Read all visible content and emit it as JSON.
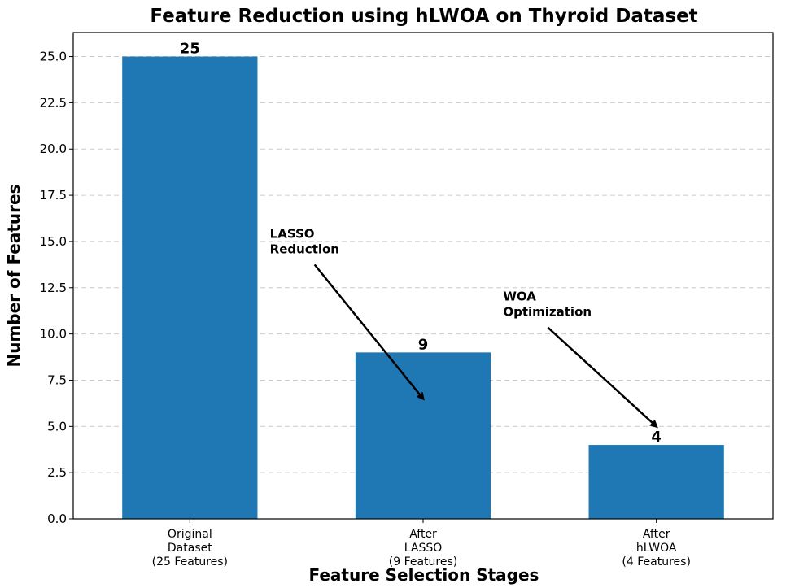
{
  "chart_data": {
    "type": "bar",
    "title": "Feature Reduction using hLWOA on Thyroid Dataset",
    "xlabel": "Feature Selection Stages",
    "ylabel": "Number of Features",
    "categories": [
      [
        "Original",
        "Dataset",
        "(25 Features)"
      ],
      [
        "After",
        "LASSO",
        "(9 Features)"
      ],
      [
        "After",
        "hLWOA",
        "(4 Features)"
      ]
    ],
    "values": [
      25,
      9,
      4
    ],
    "data_labels": [
      "25",
      "9",
      "4"
    ],
    "ylim": [
      0,
      26.3
    ],
    "yticks": [
      0,
      2.5,
      5,
      7.5,
      10,
      12.5,
      15,
      17.5,
      20,
      22.5,
      25
    ],
    "ytick_labels": [
      "0.0",
      "2.5",
      "5.0",
      "7.5",
      "10.0",
      "12.5",
      "15.0",
      "17.5",
      "20.0",
      "22.5",
      "25.0"
    ],
    "grid": "y-dashed",
    "bar_color": "#1f77b4",
    "annotations": [
      {
        "lines": [
          "LASSO",
          "Reduction"
        ],
        "text_category": 0.5,
        "text_y": 15.2,
        "target_category": 1,
        "target_y": 6.5
      },
      {
        "lines": [
          "WOA",
          "Optimization"
        ],
        "text_category": 1.5,
        "text_y": 11.8,
        "target_category": 2,
        "target_y": 5.0
      }
    ]
  }
}
